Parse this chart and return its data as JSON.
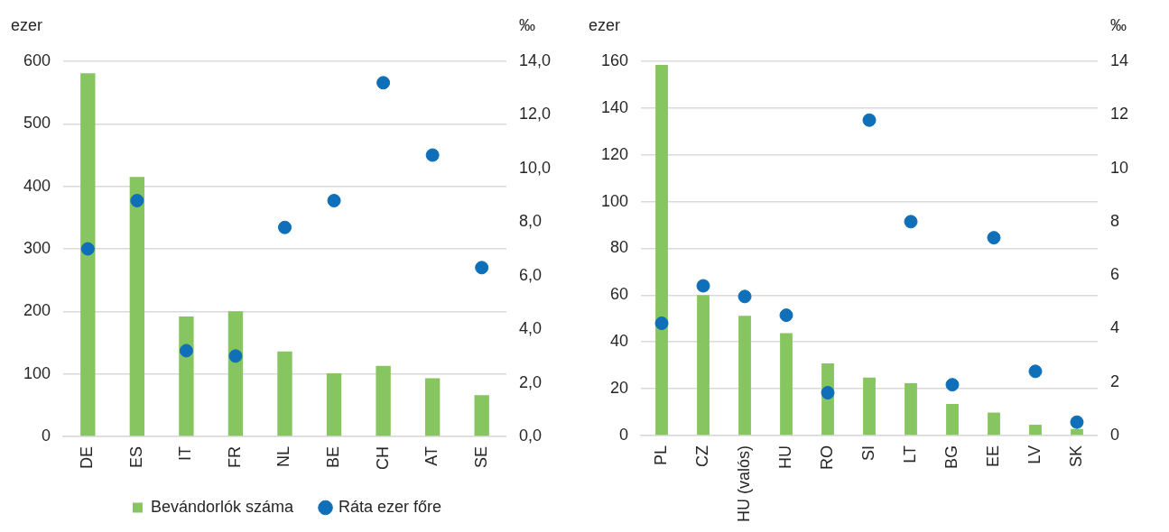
{
  "chart_data": [
    {
      "type": "bar",
      "ylabel": "ezer",
      "y2label": "‰",
      "categories": [
        "DE",
        "ES",
        "IT",
        "FR",
        "NL",
        "BE",
        "CH",
        "AT",
        "SE"
      ],
      "series": [
        {
          "name": "Bevándorlók száma",
          "color": "#86c55f",
          "values": [
            581,
            415,
            192,
            200,
            136,
            101,
            113,
            93,
            66
          ]
        },
        {
          "name": "Ráta ezer főre",
          "type": "scatter",
          "axis": "y2",
          "color": "#0f6fb8",
          "values": [
            7.0,
            8.8,
            3.2,
            3.0,
            7.8,
            8.8,
            13.2,
            10.5,
            6.3
          ]
        }
      ],
      "ylim": [
        0,
        600
      ],
      "yticks": [
        0,
        100,
        200,
        300,
        400,
        500,
        600
      ],
      "y2lim": [
        0,
        14
      ],
      "y2ticks": [
        {
          "value": 0,
          "label": "0,0"
        },
        {
          "value": 2,
          "label": "2,0"
        },
        {
          "value": 4,
          "label": "4,0"
        },
        {
          "value": 6,
          "label": "6,0"
        },
        {
          "value": 8,
          "label": "8,0"
        },
        {
          "value": 10,
          "label": "10,0"
        },
        {
          "value": 12,
          "label": "12,0"
        },
        {
          "value": 14,
          "label": "14,0"
        }
      ],
      "grid": "y",
      "legend": "bottom",
      "marker": "circle"
    },
    {
      "type": "bar",
      "ylabel": "ezer",
      "y2label": "‰",
      "categories": [
        "PL",
        "CZ",
        "HU (valós)",
        "HU",
        "RO",
        "SI",
        "LT",
        "BG",
        "EE",
        "LV",
        "SK"
      ],
      "series": [
        {
          "color": "#86c55f",
          "values": [
            158.5,
            60,
            51.2,
            43.8,
            30.8,
            24.8,
            22.4,
            13.5,
            9.8,
            4.6,
            2.8
          ]
        },
        {
          "type": "scatter",
          "axis": "y2",
          "color": "#0f6fb8",
          "values": [
            4.2,
            5.6,
            5.2,
            4.5,
            1.6,
            11.8,
            8.0,
            1.9,
            7.4,
            2.4,
            0.5
          ]
        }
      ],
      "ylim": [
        0,
        160
      ],
      "yticks": [
        0,
        20,
        40,
        60,
        80,
        100,
        120,
        140,
        160
      ],
      "y2lim": [
        0,
        14
      ],
      "y2ticks": [
        0,
        2,
        4,
        6,
        8,
        10,
        12,
        14
      ],
      "grid": "y",
      "legend": false,
      "marker": "circle"
    }
  ]
}
